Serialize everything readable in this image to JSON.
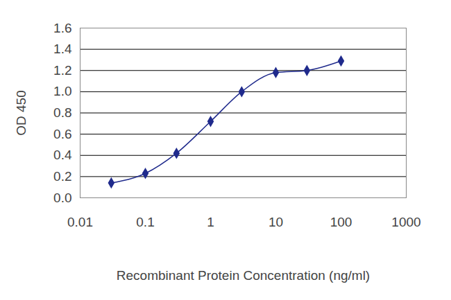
{
  "chart_data": {
    "type": "line",
    "x_label": "Recombinant Protein Concentration (ng/ml)",
    "y_label": "OD 450",
    "x": [
      0.03,
      0.1,
      0.3,
      1,
      3,
      10,
      30,
      100
    ],
    "values": [
      0.14,
      0.23,
      0.42,
      0.72,
      1.0,
      1.18,
      1.2,
      1.29
    ],
    "color": "#1f2a8c",
    "marker": "diamond",
    "log": "x",
    "xlim": [
      0.01,
      1000
    ],
    "xticks": [
      0.01,
      0.1,
      1,
      10,
      100,
      1000
    ],
    "ylim": [
      0,
      1.6
    ],
    "yticks": [
      {
        "value": 0,
        "label": "0.0"
      },
      0.2,
      0.4,
      0.6,
      0.8,
      {
        "value": 1,
        "label": "1.0"
      },
      1.2,
      1.4,
      1.6
    ],
    "grid": true
  }
}
